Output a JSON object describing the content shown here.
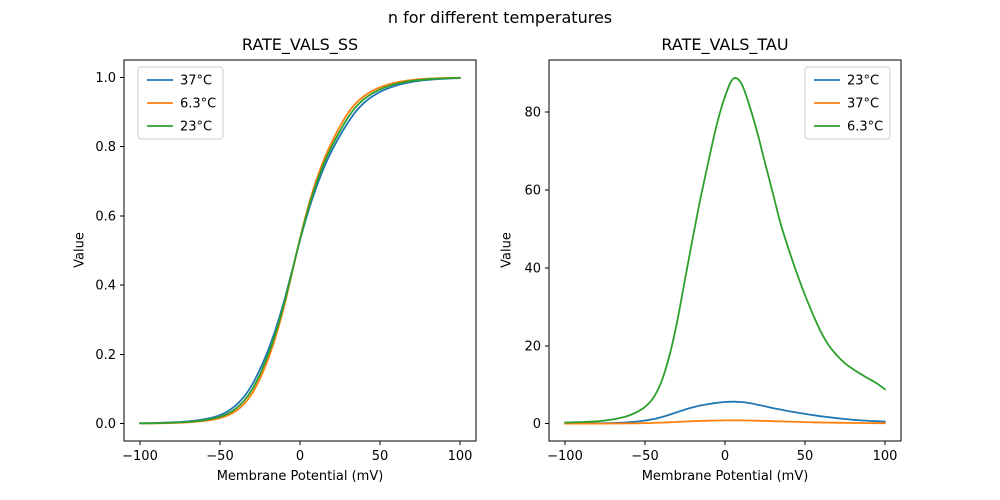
{
  "figure": {
    "suptitle": "n for different temperatures",
    "background": "#ffffff",
    "text_color": "#000000",
    "spine_color": "#000000",
    "legend_border_color": "#cccccc"
  },
  "chart_data": [
    {
      "id": "rate-vals-ss",
      "type": "line",
      "title": "RATE_VALS_SS",
      "xlabel": "Membrane Potential (mV)",
      "ylabel": "Value",
      "xlim": [
        -110,
        110
      ],
      "ylim": [
        -0.05,
        1.05
      ],
      "xticks": [
        -100,
        -50,
        0,
        50,
        100
      ],
      "xtick_labels": [
        "−100",
        "−50",
        "0",
        "50",
        "100"
      ],
      "yticks": [
        0,
        0.2,
        0.4,
        0.6,
        0.8,
        1.0
      ],
      "ytick_labels": [
        "0.0",
        "0.2",
        "0.4",
        "0.6",
        "0.8",
        "1.0"
      ],
      "grid": false,
      "legend_pos": "upper left",
      "axes_rect": [
        124,
        60,
        476,
        441
      ],
      "x": [
        -100,
        -95,
        -90,
        -85,
        -80,
        -75,
        -70,
        -65,
        -60,
        -55,
        -50,
        -45,
        -40,
        -35,
        -30,
        -25,
        -20,
        -15,
        -10,
        -5,
        0,
        5,
        10,
        15,
        20,
        25,
        30,
        35,
        40,
        45,
        50,
        55,
        60,
        65,
        70,
        75,
        80,
        85,
        90,
        95,
        100
      ],
      "base_values": [
        0.001,
        0.0012,
        0.0015,
        0.002,
        0.0028,
        0.0038,
        0.0052,
        0.0072,
        0.01,
        0.014,
        0.02,
        0.029,
        0.044,
        0.066,
        0.098,
        0.143,
        0.198,
        0.265,
        0.345,
        0.438,
        0.532,
        0.618,
        0.69,
        0.752,
        0.802,
        0.845,
        0.884,
        0.915,
        0.937,
        0.953,
        0.965,
        0.974,
        0.981,
        0.986,
        0.99,
        0.9925,
        0.9945,
        0.996,
        0.997,
        0.998,
        0.9985
      ],
      "spread_center": -2.5,
      "series": [
        {
          "name": "37°C",
          "color": "#1f77b4",
          "v_spread": 1.06
        },
        {
          "name": "6.3°C",
          "color": "#ff7f0e",
          "v_spread": 0.94
        },
        {
          "name": "23°C",
          "color": "#2ca02c",
          "v_spread": 1.0
        }
      ]
    },
    {
      "id": "rate-vals-tau",
      "type": "line",
      "title": "RATE_VALS_TAU",
      "xlabel": "Membrane Potential (mV)",
      "ylabel": "Value",
      "xlim": [
        -110,
        110
      ],
      "ylim": [
        -4.45,
        93.35
      ],
      "xticks": [
        -100,
        -50,
        0,
        50,
        100
      ],
      "xtick_labels": [
        "−100",
        "−50",
        "0",
        "50",
        "100"
      ],
      "yticks": [
        0,
        20,
        40,
        60,
        80
      ],
      "ytick_labels": [
        "0",
        "20",
        "40",
        "60",
        "80"
      ],
      "grid": false,
      "legend_pos": "upper right",
      "axes_rect": [
        549,
        60,
        901,
        441
      ],
      "x": [
        -100,
        -95,
        -90,
        -85,
        -80,
        -75,
        -70,
        -65,
        -60,
        -55,
        -50,
        -45,
        -40,
        -35,
        -30,
        -25,
        -20,
        -15,
        -10,
        -5,
        0,
        5,
        10,
        15,
        20,
        25,
        30,
        35,
        40,
        45,
        50,
        55,
        60,
        65,
        70,
        75,
        80,
        85,
        90,
        95,
        100
      ],
      "series": [
        {
          "name": "23°C",
          "color": "#1f77b4",
          "values": [
            0.05,
            0.06,
            0.07,
            0.08,
            0.1,
            0.13,
            0.17,
            0.25,
            0.38,
            0.55,
            0.8,
            1.15,
            1.65,
            2.25,
            2.95,
            3.6,
            4.2,
            4.7,
            5.05,
            5.35,
            5.55,
            5.65,
            5.55,
            5.3,
            4.9,
            4.45,
            4.0,
            3.6,
            3.2,
            2.85,
            2.5,
            2.2,
            1.9,
            1.65,
            1.4,
            1.2,
            1.0,
            0.85,
            0.72,
            0.62,
            0.55
          ]
        },
        {
          "name": "37°C",
          "color": "#ff7f0e",
          "values": [
            0.01,
            0.012,
            0.015,
            0.018,
            0.022,
            0.028,
            0.036,
            0.05,
            0.07,
            0.1,
            0.14,
            0.2,
            0.27,
            0.36,
            0.46,
            0.55,
            0.63,
            0.7,
            0.76,
            0.8,
            0.83,
            0.84,
            0.83,
            0.8,
            0.76,
            0.7,
            0.64,
            0.58,
            0.52,
            0.46,
            0.41,
            0.36,
            0.31,
            0.27,
            0.24,
            0.21,
            0.18,
            0.16,
            0.14,
            0.12,
            0.11
          ]
        },
        {
          "name": "6.3°C",
          "color": "#2ca02c",
          "values": [
            0.3,
            0.35,
            0.4,
            0.5,
            0.6,
            0.8,
            1.1,
            1.5,
            2.1,
            3.0,
            4.3,
            6.5,
            10.5,
            17,
            26,
            37,
            48,
            58.5,
            68,
            77,
            84,
            88.5,
            87.5,
            82,
            75,
            67,
            59,
            51,
            44.5,
            38.5,
            33,
            28,
            23.5,
            20,
            17.5,
            15.5,
            14,
            12.7,
            11.5,
            10.3,
            8.8
          ]
        }
      ]
    }
  ]
}
